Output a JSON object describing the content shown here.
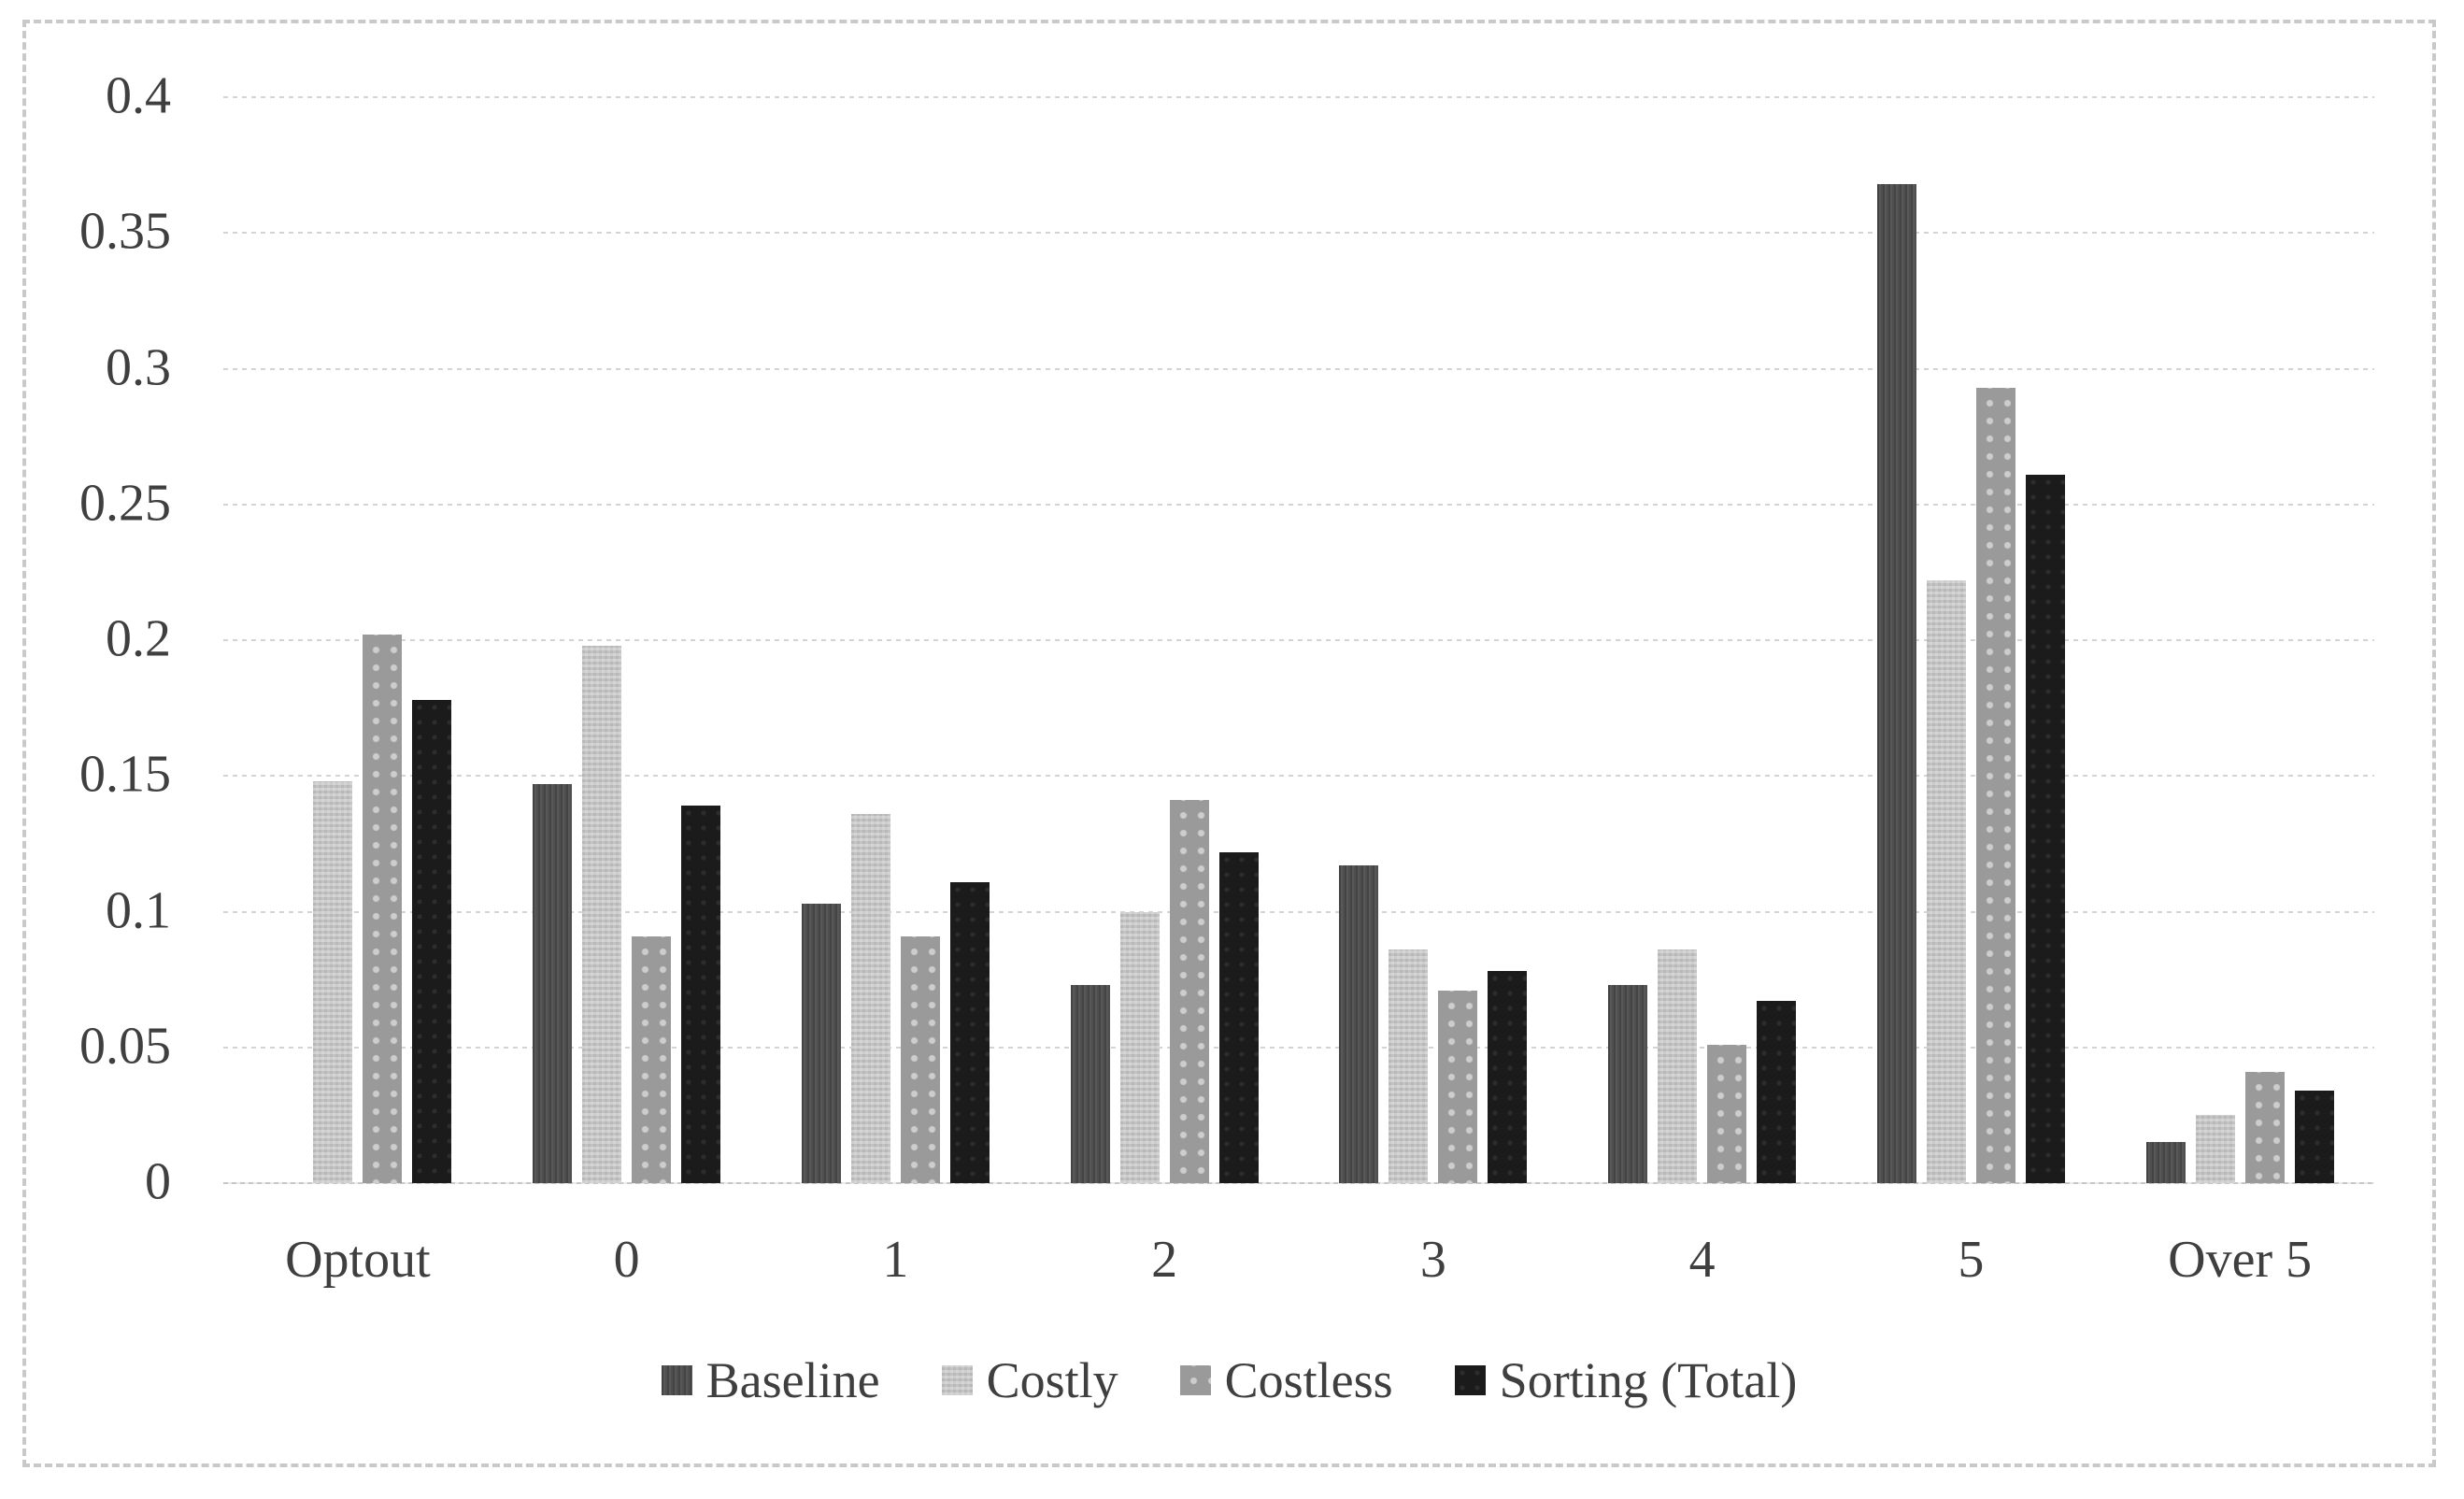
{
  "chart_data": {
    "type": "bar",
    "title": "",
    "categories": [
      "Optout",
      "0",
      "1",
      "2",
      "3",
      "4",
      "5",
      "Over 5"
    ],
    "series": [
      {
        "name": "Baseline",
        "color": "#4f4f4f",
        "pattern": "vertical-stripes",
        "values": [
          0,
          0.147,
          0.103,
          0.073,
          0.117,
          0.073,
          0.368,
          0.015
        ]
      },
      {
        "name": "Costly",
        "color": "#c3c3c3",
        "pattern": "checker",
        "values": [
          0.148,
          0.198,
          0.136,
          0.1,
          0.086,
          0.086,
          0.222,
          0.025
        ]
      },
      {
        "name": "Costless",
        "color": "#9a9a9a",
        "pattern": "light-dots",
        "values": [
          0.202,
          0.091,
          0.091,
          0.141,
          0.071,
          0.051,
          0.293,
          0.041
        ]
      },
      {
        "name": "Sorting (Total)",
        "color": "#1b1b1b",
        "pattern": "solid",
        "values": [
          0.178,
          0.139,
          0.111,
          0.122,
          0.078,
          0.067,
          0.261,
          0.034
        ]
      }
    ],
    "xlabel": "",
    "ylabel": "",
    "ylim": [
      0,
      0.4
    ],
    "yticks": [
      "0",
      "0.05",
      "0.1",
      "0.15",
      "0.2",
      "0.25",
      "0.3",
      "0.35",
      "0.4"
    ],
    "grid": "horizontal-dashed",
    "legend_position": "bottom",
    "colors": {
      "gridline": "#d4d4d4",
      "axis_line": "#c7c7c7",
      "tick_text": "#3f3f3f",
      "frame_border": "#c9c9c9",
      "background": "#ffffff"
    }
  }
}
